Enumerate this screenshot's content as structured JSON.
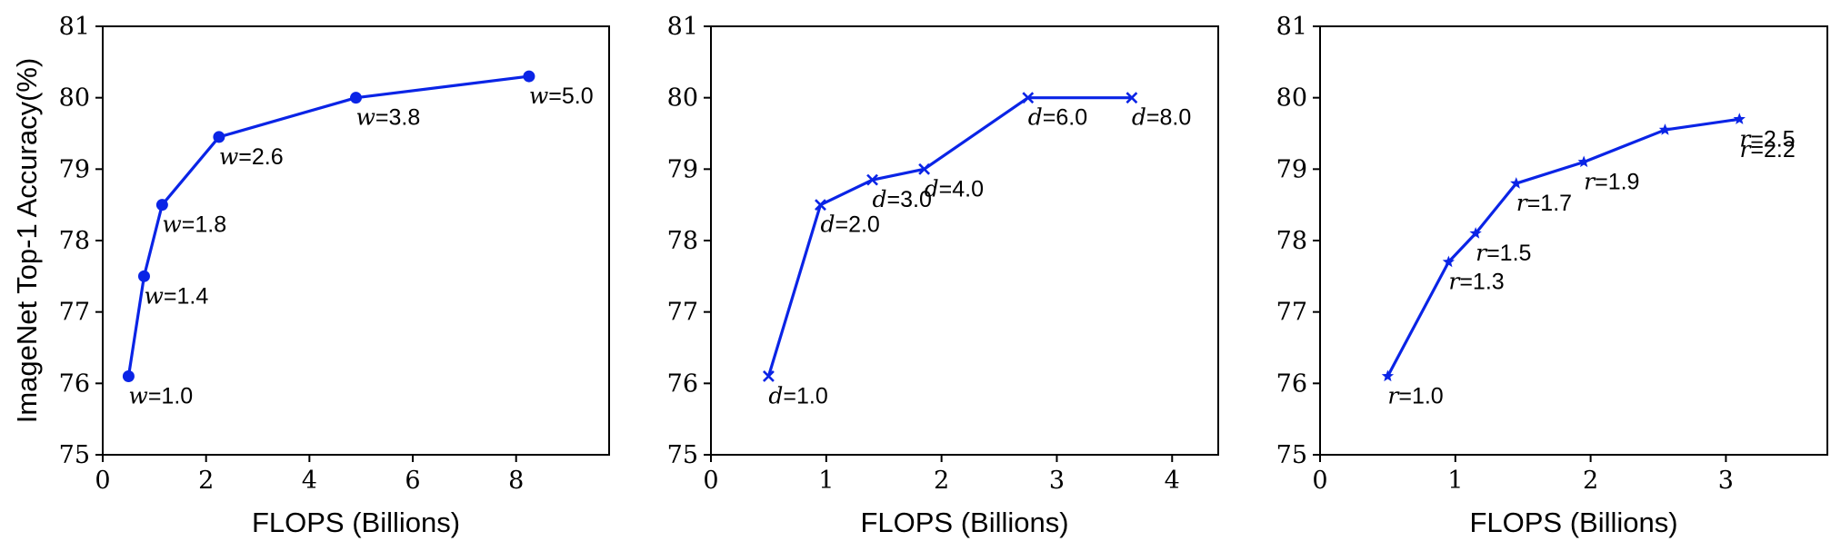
{
  "colors": {
    "series": "#0a24e6",
    "axis": "#000000"
  },
  "chart_data": [
    {
      "type": "line",
      "marker": "circle",
      "xlabel": "FLOPS (Billions)",
      "ylabel": "ImageNet Top-1 Accuracy(%)",
      "xlim": [
        0,
        9.8
      ],
      "ylim": [
        75,
        81
      ],
      "xticks": [
        0,
        2,
        4,
        6,
        8
      ],
      "yticks": [
        75,
        76,
        77,
        78,
        79,
        80,
        81
      ],
      "grid": false,
      "points": [
        {
          "x": 0.5,
          "y": 76.1,
          "var": "w",
          "value": "=1.0"
        },
        {
          "x": 0.8,
          "y": 77.5,
          "var": "w",
          "value": "=1.4"
        },
        {
          "x": 1.15,
          "y": 78.5,
          "var": "w",
          "value": "=1.8"
        },
        {
          "x": 2.25,
          "y": 79.45,
          "var": "w",
          "value": "=2.6"
        },
        {
          "x": 4.9,
          "y": 80.0,
          "var": "w",
          "value": "=3.8"
        },
        {
          "x": 8.25,
          "y": 80.3,
          "var": "w",
          "value": "=5.0"
        }
      ]
    },
    {
      "type": "line",
      "marker": "x",
      "xlabel": "FLOPS (Billions)",
      "ylabel": "",
      "xlim": [
        0,
        4.4
      ],
      "ylim": [
        75,
        81
      ],
      "xticks": [
        0,
        1,
        2,
        3,
        4
      ],
      "yticks": [
        75,
        76,
        77,
        78,
        79,
        80,
        81
      ],
      "grid": false,
      "points": [
        {
          "x": 0.5,
          "y": 76.1,
          "var": "d",
          "value": "=1.0"
        },
        {
          "x": 0.95,
          "y": 78.5,
          "var": "d",
          "value": "=2.0"
        },
        {
          "x": 1.4,
          "y": 78.85,
          "var": "d",
          "value": "=3.0"
        },
        {
          "x": 1.85,
          "y": 79.0,
          "var": "d",
          "value": "=4.0"
        },
        {
          "x": 2.75,
          "y": 80.0,
          "var": "d",
          "value": "=6.0"
        },
        {
          "x": 3.65,
          "y": 80.0,
          "var": "d",
          "value": "=8.0"
        }
      ]
    },
    {
      "type": "line",
      "marker": "star",
      "xlabel": "FLOPS (Billions)",
      "ylabel": "",
      "xlim": [
        0,
        3.75
      ],
      "ylim": [
        75,
        81
      ],
      "xticks": [
        0,
        1,
        2,
        3
      ],
      "yticks": [
        75,
        76,
        77,
        78,
        79,
        80,
        81
      ],
      "grid": false,
      "points": [
        {
          "x": 0.5,
          "y": 76.1,
          "var": "r",
          "value": "=1.0"
        },
        {
          "x": 0.95,
          "y": 77.7,
          "var": "r",
          "value": "=1.3"
        },
        {
          "x": 1.15,
          "y": 78.1,
          "var": "r",
          "value": "=1.5"
        },
        {
          "x": 1.45,
          "y": 78.8,
          "var": "r",
          "value": "=1.7"
        },
        {
          "x": 1.95,
          "y": 79.1,
          "var": "r",
          "value": "=1.9"
        },
        {
          "x": 2.55,
          "y": 79.55,
          "var": "r",
          "value": "=2.2"
        },
        {
          "x": 3.1,
          "y": 79.7,
          "var": "r",
          "value": "=2.5"
        }
      ]
    }
  ]
}
